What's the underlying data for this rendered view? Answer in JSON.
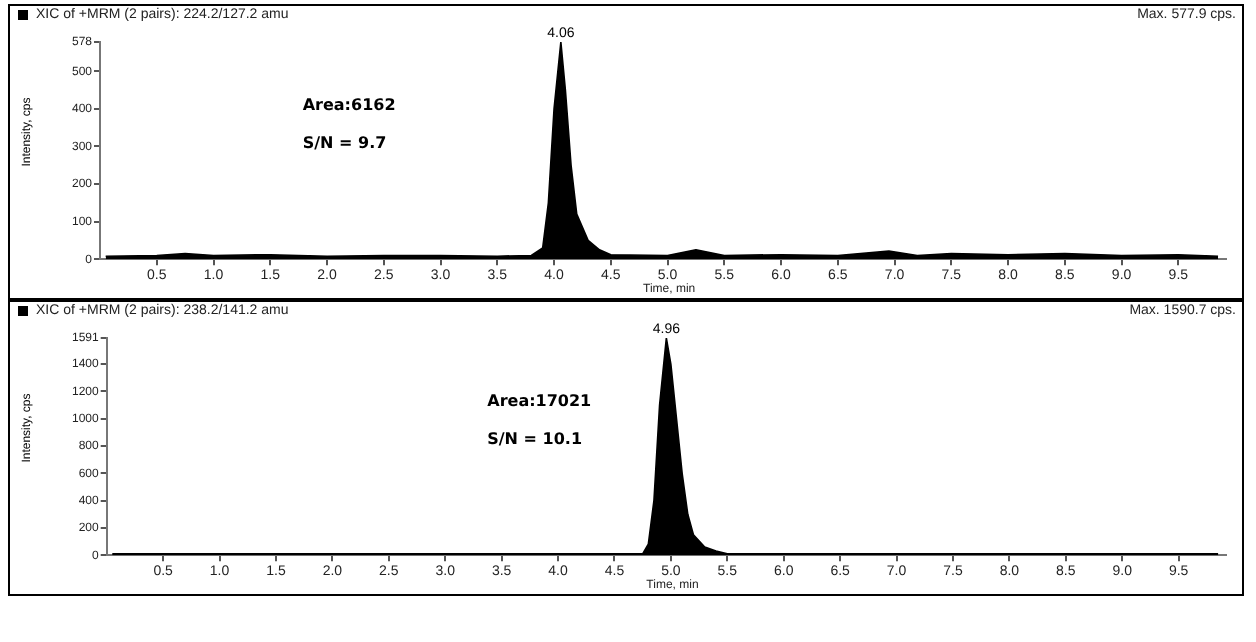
{
  "chart_data": [
    {
      "type": "area",
      "title": "XIC of +MRM (2 pairs): 224.2/127.2 amu",
      "subtitle": "Max. 577.9 cps.",
      "xlabel": "Time, min",
      "ylabel": "Intensity, cps",
      "grid": false,
      "legend": false,
      "marker": "none",
      "xlim": [
        0,
        9.92
      ],
      "xticks": [
        0.5,
        {
          "value": 1,
          "label": "1.0"
        },
        1.5,
        {
          "value": 2,
          "label": "2.0"
        },
        2.5,
        {
          "value": 3,
          "label": "3.0"
        },
        3.5,
        {
          "value": 4,
          "label": "4.0"
        },
        4.5,
        {
          "value": 5,
          "label": "5.0"
        },
        5.5,
        {
          "value": 6,
          "label": "6.0"
        },
        6.5,
        {
          "value": 7,
          "label": "7.0"
        },
        7.5,
        {
          "value": 8,
          "label": "8.0"
        },
        8.5,
        {
          "value": 9,
          "label": "9.0"
        },
        9.5
      ],
      "ylim": [
        0,
        578
      ],
      "yticks": [
        0,
        100,
        200,
        300,
        400,
        500,
        578
      ],
      "annotations": [
        "Area:6162",
        "S/N = 9.7",
        {
          "text": "4.06",
          "x": 4.06,
          "y": 578
        }
      ],
      "series": [
        {
          "color": "#000000",
          "x": [
            0.05,
            0.5,
            0.75,
            1.0,
            1.5,
            2.0,
            2.5,
            3.0,
            3.5,
            3.8,
            3.9,
            3.95,
            4.0,
            4.06,
            4.1,
            4.15,
            4.2,
            4.3,
            4.4,
            4.5,
            5.0,
            5.25,
            5.5,
            6.0,
            6.5,
            6.95,
            7.2,
            7.5,
            8.0,
            8.5,
            9.0,
            9.5,
            9.85
          ],
          "values": [
            8,
            10,
            15,
            10,
            12,
            8,
            10,
            10,
            8,
            10,
            30,
            150,
            400,
            578,
            450,
            250,
            120,
            50,
            25,
            12,
            10,
            25,
            10,
            12,
            10,
            22,
            10,
            15,
            12,
            15,
            10,
            12,
            8
          ]
        }
      ]
    },
    {
      "type": "area",
      "title": "XIC of +MRM (2 pairs): 238.2/141.2 amu",
      "subtitle": "Max. 1590.7 cps.",
      "xlabel": "Time, min",
      "ylabel": "Intensity, cps",
      "grid": false,
      "legend": false,
      "marker": "none",
      "xlim": [
        0,
        9.92
      ],
      "xticks": [
        0.5,
        {
          "value": 1,
          "label": "1.0"
        },
        1.5,
        {
          "value": 2,
          "label": "2.0"
        },
        2.5,
        {
          "value": 3,
          "label": "3.0"
        },
        3.5,
        {
          "value": 4,
          "label": "4.0"
        },
        4.5,
        {
          "value": 5,
          "label": "5.0"
        },
        5.5,
        {
          "value": 6,
          "label": "6.0"
        },
        6.5,
        {
          "value": 7,
          "label": "7.0"
        },
        7.5,
        {
          "value": 8,
          "label": "8.0"
        },
        8.5,
        {
          "value": 9,
          "label": "9.0"
        },
        9.5
      ],
      "ylim": [
        0,
        1591
      ],
      "yticks": [
        0,
        200,
        400,
        600,
        800,
        1000,
        1200,
        1400,
        1591
      ],
      "annotations": [
        "Area:17021",
        "S/N = 10.1",
        {
          "text": "4.96",
          "x": 4.96,
          "y": 1591
        }
      ],
      "series": [
        {
          "color": "#000000",
          "x": [
            0.05,
            1.0,
            2.0,
            3.0,
            4.0,
            4.5,
            4.75,
            4.8,
            4.85,
            4.9,
            4.96,
            5.0,
            5.05,
            5.1,
            5.15,
            5.2,
            5.3,
            5.4,
            5.5,
            6.0,
            7.0,
            8.0,
            9.0,
            9.85
          ],
          "values": [
            10,
            10,
            10,
            10,
            10,
            10,
            10,
            80,
            400,
            1100,
            1591,
            1400,
            1000,
            600,
            300,
            150,
            60,
            30,
            10,
            10,
            10,
            10,
            10,
            10
          ]
        }
      ]
    }
  ]
}
